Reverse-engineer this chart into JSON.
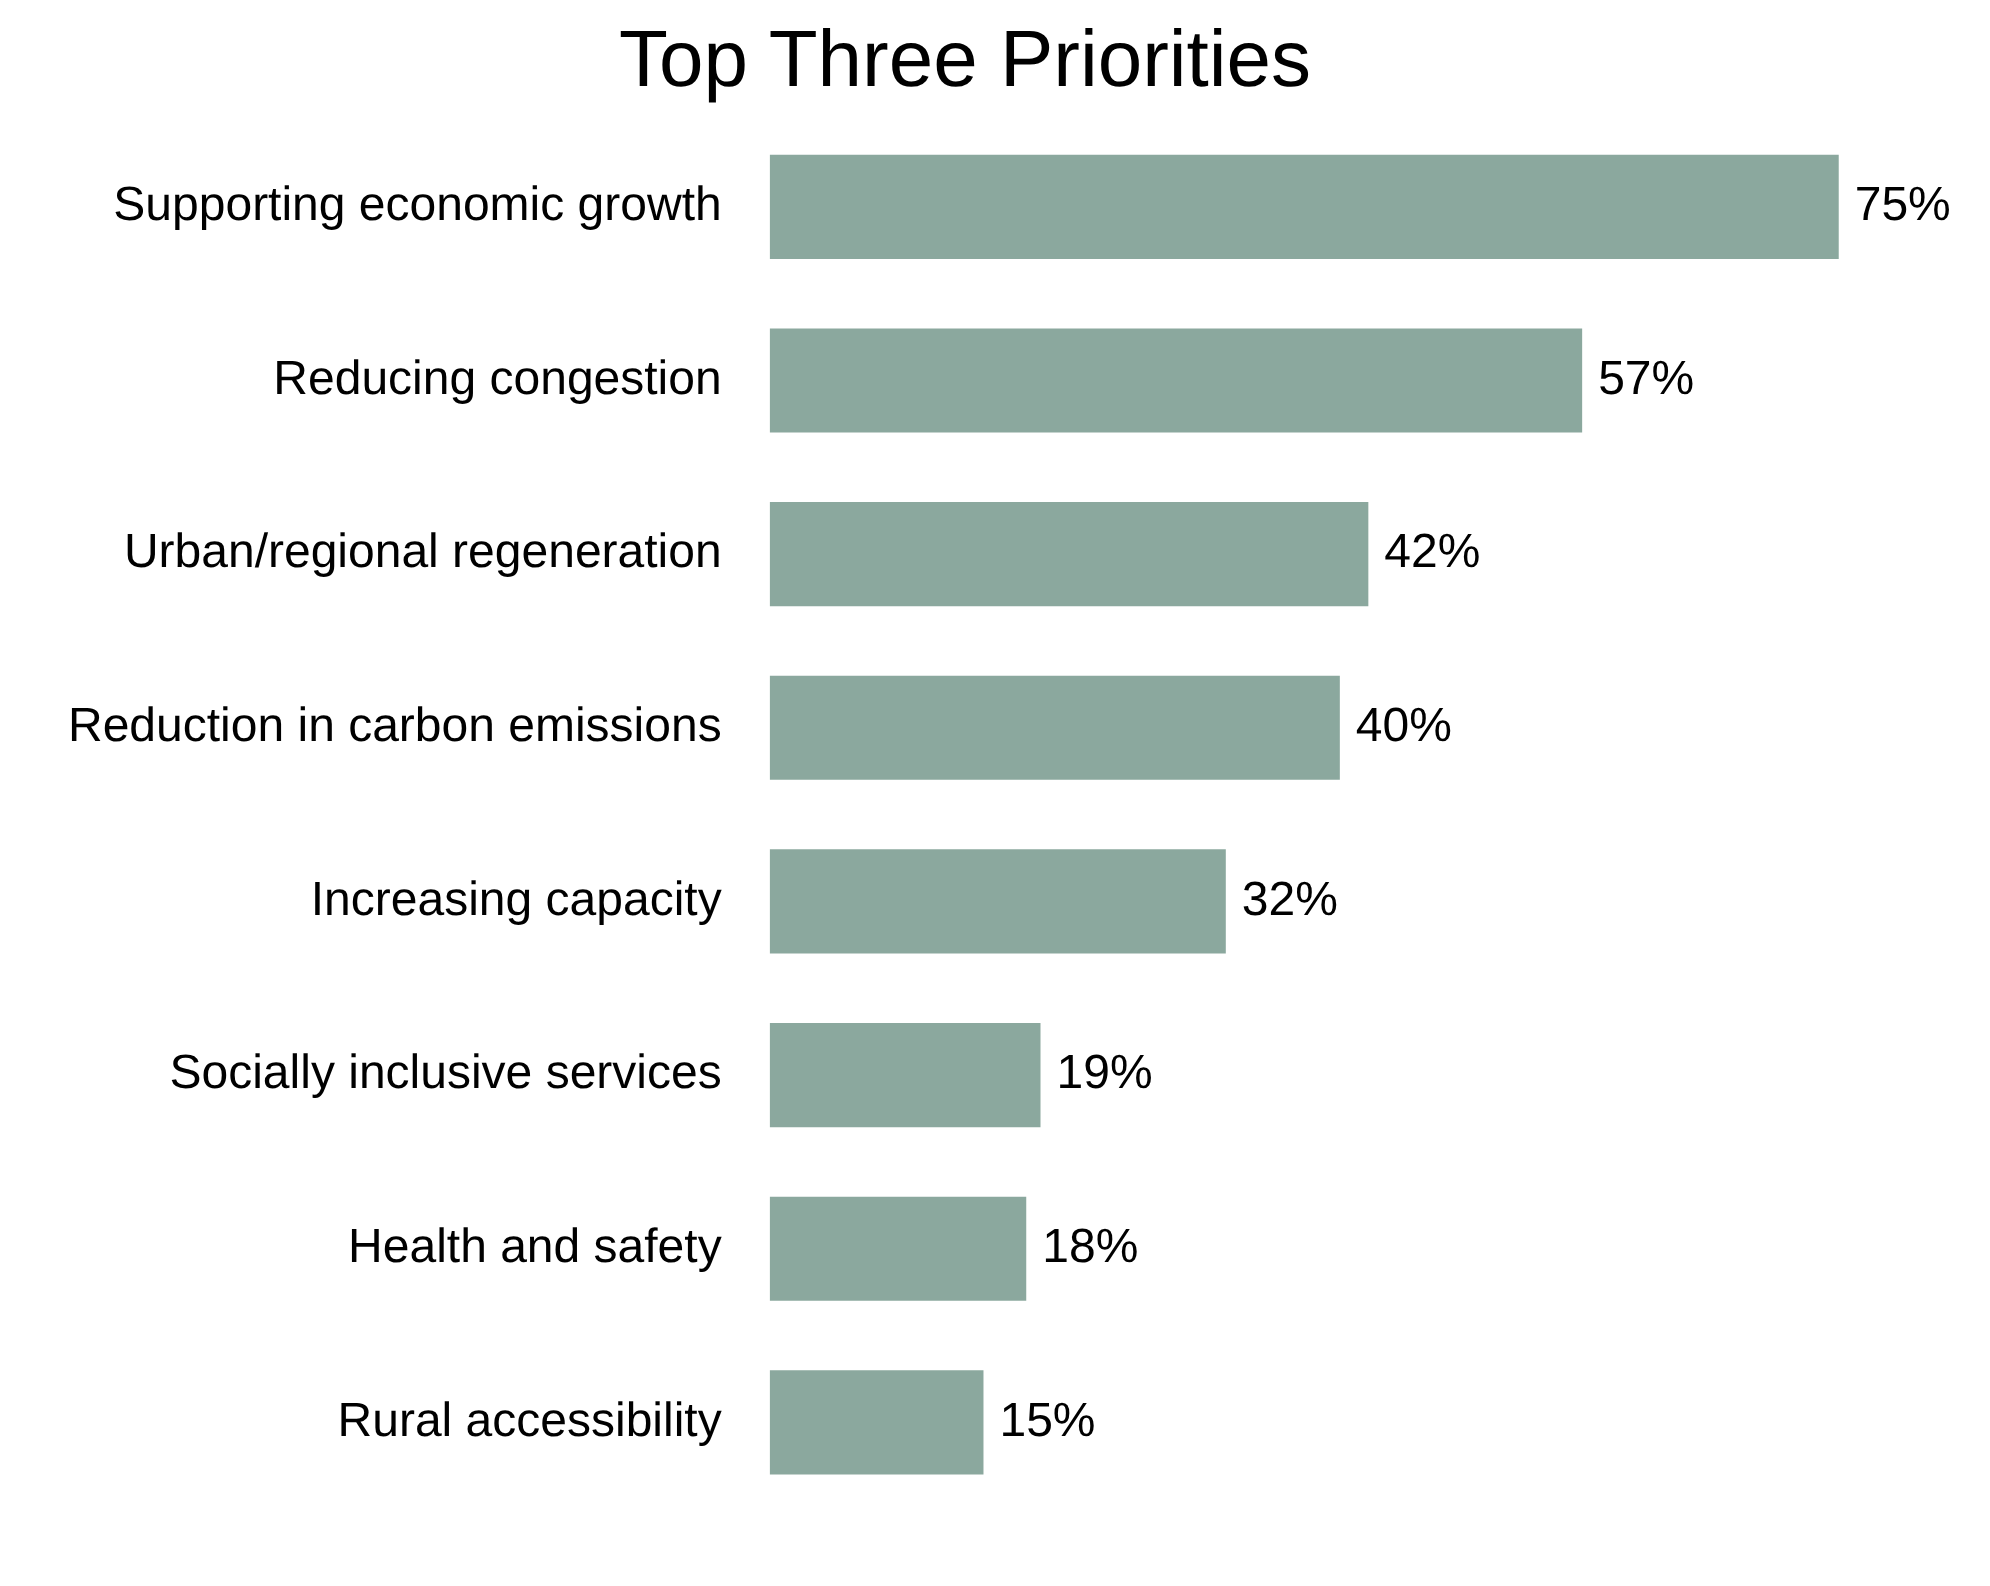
{
  "chart_data": {
    "type": "bar",
    "orientation": "horizontal",
    "title": "Top Three Priorities",
    "categories": [
      "Supporting economic growth",
      "Reducing congestion",
      "Urban/regional regeneration",
      "Reduction in carbon emissions",
      "Increasing capacity",
      "Socially inclusive services",
      "Health and safety",
      "Rural accessibility"
    ],
    "values": [
      75,
      57,
      42,
      40,
      32,
      19,
      18,
      15
    ],
    "value_labels": [
      "75%",
      "57%",
      "42%",
      "40%",
      "32%",
      "19%",
      "18%",
      "15%"
    ],
    "color": "#8ba89e",
    "tick_labels": "y",
    "legend": false
  }
}
